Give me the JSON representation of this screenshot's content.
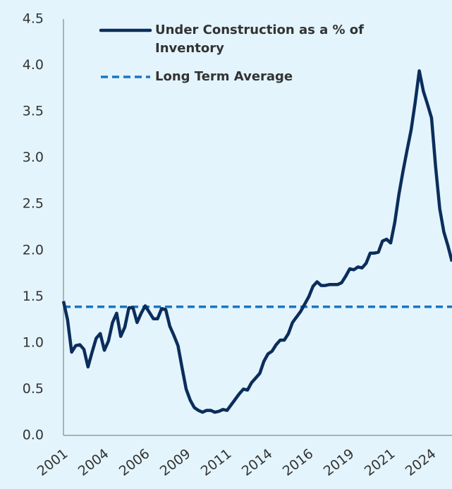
{
  "chart_data": {
    "type": "line",
    "categories": [
      "2001",
      null,
      null,
      null,
      null,
      null,
      null,
      null,
      null,
      null,
      "2004",
      null,
      null,
      null,
      null,
      null,
      null,
      null,
      null,
      null,
      "2006",
      null,
      null,
      null,
      null,
      null,
      null,
      null,
      null,
      null,
      "2009",
      null,
      null,
      null,
      null,
      null,
      null,
      null,
      null,
      null,
      "2011",
      null,
      null,
      null,
      null,
      null,
      null,
      null,
      null,
      null,
      "2014",
      null,
      null,
      null,
      null,
      null,
      null,
      null,
      null,
      null,
      "2016",
      null,
      null,
      null,
      null,
      null,
      null,
      null,
      null,
      null,
      "2019",
      null,
      null,
      null,
      null,
      null,
      null,
      null,
      null,
      null,
      "2021",
      null,
      null,
      null,
      null,
      null,
      null,
      null,
      null,
      null,
      "2024",
      null,
      null,
      null,
      null,
      null
    ],
    "series": [
      {
        "name": "Under Construction as a % of Inventory",
        "color": "#0b2d5b",
        "values": [
          1.45,
          1.25,
          0.9,
          0.97,
          0.98,
          0.93,
          0.74,
          0.9,
          1.05,
          1.1,
          0.92,
          1.02,
          1.22,
          1.32,
          1.07,
          1.17,
          1.38,
          1.38,
          1.22,
          1.32,
          1.4,
          1.33,
          1.26,
          1.26,
          1.37,
          1.36,
          1.18,
          1.08,
          0.97,
          0.73,
          0.5,
          0.38,
          0.3,
          0.27,
          0.25,
          0.27,
          0.27,
          0.25,
          0.26,
          0.28,
          0.27,
          0.33,
          0.39,
          0.45,
          0.5,
          0.49,
          0.57,
          0.62,
          0.67,
          0.8,
          0.88,
          0.91,
          0.98,
          1.03,
          1.03,
          1.1,
          1.22,
          1.28,
          1.34,
          1.42,
          1.5,
          1.61,
          1.66,
          1.62,
          1.62,
          1.63,
          1.63,
          1.63,
          1.65,
          1.72,
          1.8,
          1.79,
          1.82,
          1.81,
          1.86,
          1.97,
          1.97,
          1.98,
          2.1,
          2.12,
          2.08,
          2.3,
          2.6,
          2.85,
          3.08,
          3.3,
          3.6,
          3.94,
          3.72,
          3.58,
          3.43,
          2.9,
          2.45,
          2.2,
          2.05,
          1.88
        ]
      }
    ],
    "average": {
      "name": "Long Term Average",
      "value": 1.39,
      "color": "#1b75c4",
      "dashed": true
    },
    "ylim": [
      0,
      4.5
    ],
    "yticks": [
      {
        "value": 0,
        "label": "0.0"
      },
      0.5,
      {
        "value": 1,
        "label": "1.0"
      },
      1.5,
      {
        "value": 2,
        "label": "2.0"
      },
      2.5,
      {
        "value": 3,
        "label": "3.0"
      },
      3.5,
      {
        "value": 4,
        "label": "4.0"
      },
      4.5
    ],
    "grid": false
  }
}
